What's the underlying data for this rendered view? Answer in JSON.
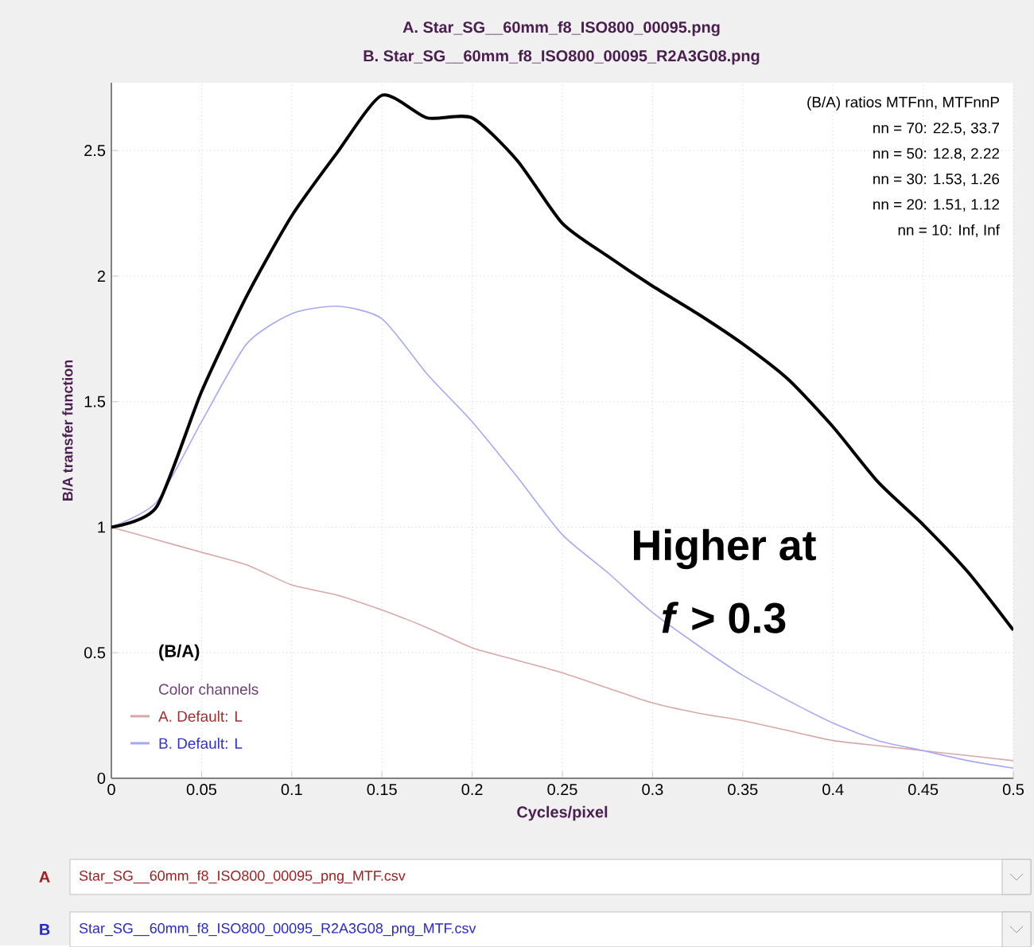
{
  "chart_data": {
    "type": "line",
    "title": "A.  Star_SG__60mm_f8_ISO800_00095.png",
    "subtitle": "B.  Star_SG__60mm_f8_ISO800_00095_R2A3G08.png",
    "xlabel": "Cycles/pixel",
    "ylabel": "B/A transfer function",
    "legend_title": "Color channels",
    "x": [
      0,
      0.025,
      0.05,
      0.075,
      0.1,
      0.125,
      0.15,
      0.175,
      0.2,
      0.225,
      0.25,
      0.275,
      0.3,
      0.325,
      0.35,
      0.375,
      0.4,
      0.425,
      0.45,
      0.475,
      0.5
    ],
    "series": [
      {
        "name": "(B/A)",
        "color": "#000000",
        "values": [
          1.0,
          1.08,
          1.54,
          1.92,
          2.24,
          2.49,
          2.72,
          2.63,
          2.63,
          2.46,
          2.21,
          2.08,
          1.96,
          1.85,
          1.73,
          1.59,
          1.4,
          1.18,
          1.01,
          0.82,
          0.59
        ]
      },
      {
        "name": "A.  Default: L",
        "color": "#d8a8a8",
        "values": [
          1.0,
          0.95,
          0.9,
          0.85,
          0.77,
          0.73,
          0.67,
          0.6,
          0.52,
          0.47,
          0.42,
          0.36,
          0.3,
          0.26,
          0.23,
          0.19,
          0.15,
          0.13,
          0.11,
          0.09,
          0.07
        ]
      },
      {
        "name": "B.  Default: L",
        "color": "#a8a8f0",
        "values": [
          1.0,
          1.1,
          1.42,
          1.73,
          1.85,
          1.88,
          1.83,
          1.61,
          1.42,
          1.2,
          0.97,
          0.82,
          0.66,
          0.53,
          0.41,
          0.31,
          0.22,
          0.15,
          0.11,
          0.07,
          0.04
        ]
      }
    ],
    "xlim": [
      0,
      0.5
    ],
    "ylim": [
      0,
      2.77
    ],
    "xticks": [
      0,
      0.05,
      0.1,
      0.15,
      0.2,
      0.25,
      0.3,
      0.35,
      0.4,
      0.45,
      0.5
    ],
    "yticks": [
      0,
      0.5,
      1,
      1.5,
      2,
      2.5
    ],
    "grid": true,
    "legend": "bottom left",
    "marker": "none",
    "line_style": "solid",
    "annotations": [
      "(B/A) ratios  MTFnn,  MTFnnP",
      "nn = 70:  22.5,  33.7",
      "nn = 50:  12.8,  2.22",
      "nn = 30:  1.53,  1.26",
      "nn = 20:  1.51,  1.12",
      "nn = 10:  Inf,  Inf",
      "Higher at",
      "*f* > 0.3",
      "A",
      "Star_SG__60mm_f8_ISO800_00095_png_MTF.csv",
      "B",
      "Star_SG__60mm_f8_ISO800_00095_R2A3G08_png_MTF.csv"
    ]
  }
}
